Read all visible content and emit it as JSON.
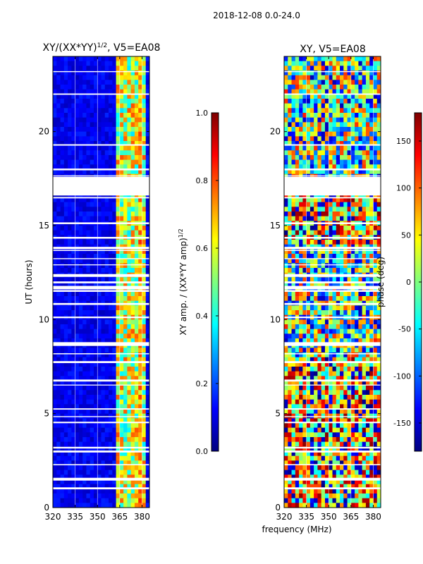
{
  "suptitle": "2018-12-08 0.0-24.0",
  "colors": {
    "jet": [
      "#00007f",
      "#0000ff",
      "#007fff",
      "#00ffff",
      "#7fff7f",
      "#ffff00",
      "#ff7f00",
      "#ff0000",
      "#7f0000"
    ],
    "gap": "#ffffff",
    "grid": "#ffffff"
  },
  "chart_data": [
    {
      "type": "heatmap",
      "title": "XY/(XX*YY)^{1/2}, V5=EA08",
      "title_main": "XY/(XX*YY)",
      "title_exp": "1/2",
      "title_tail": ", V5=EA08",
      "xlabel": "frequency (MHz)",
      "ylabel": "UT (hours)",
      "xlim": [
        320,
        385
      ],
      "ylim": [
        0,
        24
      ],
      "xticks": [
        "320",
        "335",
        "350",
        "365",
        "380"
      ],
      "yticks": [
        "0",
        "5",
        "10",
        "15",
        "20"
      ],
      "value_desc": "normalized XY amplitude; mostly ~0.1 below 362 MHz, 0.4-0.8 in 362-382 MHz band",
      "data_gaps_hours": [
        [
          16.6,
          17.6
        ],
        [
          8.6,
          8.8
        ]
      ],
      "colorbar": {
        "label_main": "XY amp. / (XX*YY amp)",
        "label_exp": "1/2",
        "range": [
          0.0,
          1.0
        ],
        "ticks": [
          "0.0",
          "0.2",
          "0.4",
          "0.6",
          "0.8",
          "1.0"
        ]
      }
    },
    {
      "type": "heatmap",
      "title": "XY, V5=EA08",
      "xlabel": "frequency (MHz)",
      "ylabel": "",
      "xlim": [
        320,
        385
      ],
      "ylim": [
        0,
        24
      ],
      "xticks": [
        "320",
        "335",
        "350",
        "365",
        "380"
      ],
      "yticks": [
        "0",
        "5",
        "10",
        "15",
        "20"
      ],
      "value_desc": "XY phase in degrees, spans -180 to 180, noisy",
      "data_gaps_hours": [
        [
          16.6,
          17.6
        ],
        [
          8.6,
          8.8
        ]
      ],
      "colorbar": {
        "label": "phase (deg)",
        "range": [
          -180,
          180
        ],
        "ticks": [
          "-150",
          "-100",
          "-50",
          "0",
          "50",
          "100",
          "150"
        ]
      }
    }
  ],
  "shared_xlabel": "frequency (MHz)"
}
